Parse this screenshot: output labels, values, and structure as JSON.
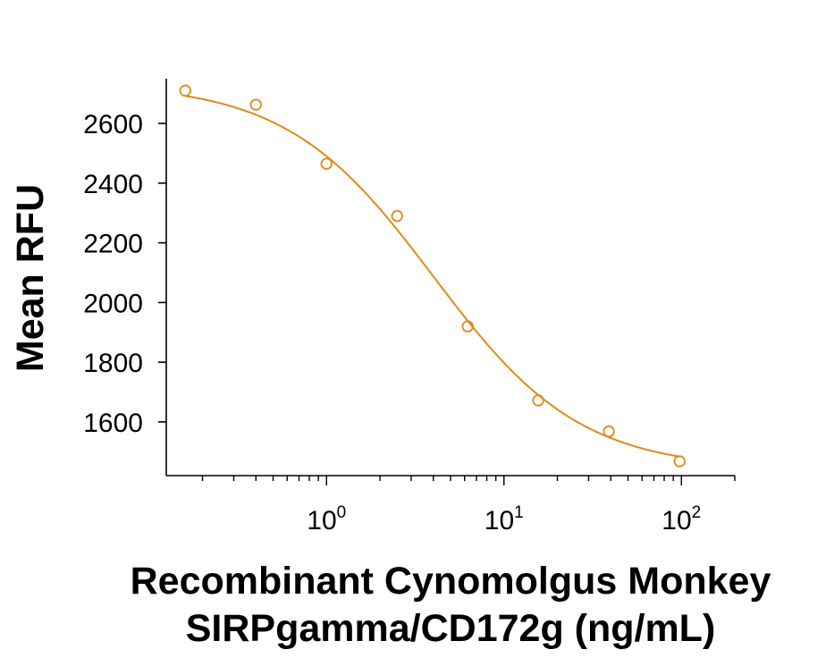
{
  "chart_data": {
    "type": "scatter",
    "title": "",
    "xlabel_lines": [
      "Recombinant Cynomolgus Monkey",
      "SIRPgamma/CD172g (ng/mL)"
    ],
    "ylabel": "Mean RFU",
    "xscale": "log10",
    "xlim": [
      0.125,
      200
    ],
    "ylim": [
      1420,
      2750
    ],
    "x_ticks": [
      {
        "value": 1,
        "base": "10",
        "exp": "0"
      },
      {
        "value": 10,
        "base": "10",
        "exp": "1"
      },
      {
        "value": 100,
        "base": "10",
        "exp": "2"
      }
    ],
    "y_ticks": [
      1600,
      1800,
      2000,
      2200,
      2400,
      2600
    ],
    "y_tick_labels": [
      "1600",
      "1800",
      "2000",
      "2200",
      "2400",
      "2600"
    ],
    "series": [
      {
        "name": "SIRPgamma/CD172g",
        "color": "#e08a17",
        "marker": "open-circle",
        "x": [
          0.16,
          0.4,
          1.0,
          2.5,
          6.25,
          15.6,
          39,
          97.7
        ],
        "y": [
          2710,
          2663,
          2465,
          2290,
          1920,
          1672,
          1568,
          1468
        ]
      }
    ],
    "fit": {
      "type": "4PL",
      "top": 2735,
      "bottom": 1440,
      "ec50": 4.0,
      "hill": 1.05,
      "color": "#e08a17"
    },
    "grid": false,
    "legend": "none"
  }
}
